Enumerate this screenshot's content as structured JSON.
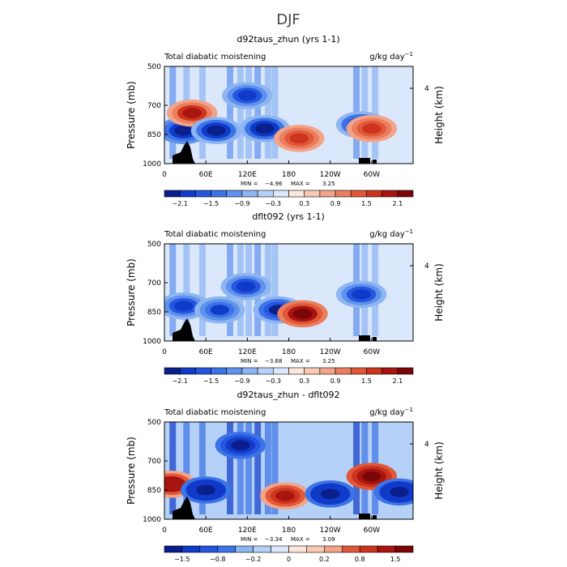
{
  "figure_title": "DJF",
  "chart_data": [
    {
      "type": "heatmap",
      "title": "d92taus_zhun (yrs 1-1)",
      "left_label": "Total diabatic moistening",
      "units_label": "g/kg day",
      "units_exponent": "−1",
      "ylabel": "Pressure (mb)",
      "y2label": "Height (km)",
      "y_ticks": [
        "500",
        "700",
        "850",
        "1000"
      ],
      "y_tick_values": [
        500,
        700,
        850,
        1000
      ],
      "y2_ticks": [
        "4"
      ],
      "x_ticks": [
        "0",
        "60E",
        "120E",
        "180",
        "120W",
        "60W"
      ],
      "x_tick_values": [
        0,
        60,
        120,
        180,
        240,
        300
      ],
      "xlim": [
        0,
        360
      ],
      "ylim": [
        1000,
        500
      ],
      "min_label": "MIN =",
      "min_value": "−4.96",
      "max_label": "MAX =",
      "max_value": "3.25",
      "colorbar_ticks": [
        "−2.1",
        "−1.5",
        "−0.9",
        "−0.3",
        "0.3",
        "0.9",
        "1.5",
        "2.1"
      ],
      "colorbar_levels": [
        -2.4,
        -2.1,
        -1.8,
        -1.5,
        -1.2,
        -0.9,
        -0.6,
        -0.3,
        0,
        0.3,
        0.6,
        0.9,
        1.2,
        1.5,
        1.8,
        2.1,
        2.4
      ],
      "color_scale": "blue-white-red",
      "features": [
        {
          "lon": 28,
          "p": 830,
          "value": -2.6
        },
        {
          "lon": 40,
          "p": 740,
          "value": 2.0
        },
        {
          "lon": 75,
          "p": 830,
          "value": -2.4
        },
        {
          "lon": 120,
          "p": 650,
          "value": -2.0
        },
        {
          "lon": 145,
          "p": 820,
          "value": -2.5
        },
        {
          "lon": 195,
          "p": 870,
          "value": 1.8
        },
        {
          "lon": 285,
          "p": 800,
          "value": -2.2
        },
        {
          "lon": 300,
          "p": 820,
          "value": 1.8
        }
      ]
    },
    {
      "type": "heatmap",
      "title": "dflt092 (yrs 1-1)",
      "left_label": "Total diabatic moistening",
      "units_label": "g/kg day",
      "units_exponent": "−1",
      "ylabel": "Pressure (mb)",
      "y2label": "Height (km)",
      "y_ticks": [
        "500",
        "700",
        "850",
        "1000"
      ],
      "y_tick_values": [
        500,
        700,
        850,
        1000
      ],
      "y2_ticks": [
        "4"
      ],
      "x_ticks": [
        "0",
        "60E",
        "120E",
        "180",
        "120W",
        "60W"
      ],
      "x_tick_values": [
        0,
        60,
        120,
        180,
        240,
        300
      ],
      "xlim": [
        0,
        360
      ],
      "ylim": [
        1000,
        500
      ],
      "min_label": "MIN =",
      "min_value": "−3.68",
      "max_label": "MAX =",
      "max_value": "3.25",
      "colorbar_ticks": [
        "−2.1",
        "−1.5",
        "−0.9",
        "−0.3",
        "0.3",
        "0.9",
        "1.5",
        "2.1"
      ],
      "colorbar_levels": [
        -2.4,
        -2.1,
        -1.8,
        -1.5,
        -1.2,
        -0.9,
        -0.6,
        -0.3,
        0,
        0.3,
        0.6,
        0.9,
        1.2,
        1.5,
        1.8,
        2.1,
        2.4
      ],
      "color_scale": "blue-white-red",
      "features": [
        {
          "lon": 28,
          "p": 820,
          "value": -2.0
        },
        {
          "lon": 80,
          "p": 840,
          "value": -1.8
        },
        {
          "lon": 118,
          "p": 720,
          "value": -2.0
        },
        {
          "lon": 165,
          "p": 840,
          "value": -2.2
        },
        {
          "lon": 200,
          "p": 860,
          "value": 2.6
        },
        {
          "lon": 285,
          "p": 760,
          "value": -2.0
        }
      ]
    },
    {
      "type": "heatmap",
      "title": "d92taus_zhun - dflt092",
      "left_label": "Total diabatic moistening",
      "units_label": "g/kg day",
      "units_exponent": "−1",
      "ylabel": "Pressure (mb)",
      "y2label": "Height (km)",
      "y_ticks": [
        "500",
        "700",
        "850",
        "1000"
      ],
      "y_tick_values": [
        500,
        700,
        850,
        1000
      ],
      "y2_ticks": [
        "4"
      ],
      "x_ticks": [
        "0",
        "60E",
        "120E",
        "180",
        "120W",
        "60W"
      ],
      "x_tick_values": [
        0,
        60,
        120,
        180,
        240,
        300
      ],
      "xlim": [
        0,
        360
      ],
      "ylim": [
        1000,
        500
      ],
      "min_label": "MIN =",
      "min_value": "−3.34",
      "max_label": "MAX =",
      "max_value": "3.09",
      "colorbar_ticks": [
        "−1.5",
        "−0.8",
        "−0.2",
        "0",
        "0.2",
        "0.8",
        "1.5"
      ],
      "colorbar_levels": [
        -2.0,
        -1.5,
        -1.0,
        -0.8,
        -0.5,
        -0.2,
        -0.1,
        0,
        0.1,
        0.2,
        0.5,
        0.8,
        1.0,
        1.5,
        2.0
      ],
      "color_scale": "blue-white-red",
      "features": [
        {
          "lon": 10,
          "p": 820,
          "value": 1.4
        },
        {
          "lon": 60,
          "p": 850,
          "value": -1.8
        },
        {
          "lon": 110,
          "p": 620,
          "value": -1.5
        },
        {
          "lon": 175,
          "p": 880,
          "value": 1.2
        },
        {
          "lon": 240,
          "p": 870,
          "value": -1.8
        },
        {
          "lon": 300,
          "p": 780,
          "value": 1.6
        },
        {
          "lon": 340,
          "p": 860,
          "value": -1.8
        }
      ]
    }
  ]
}
